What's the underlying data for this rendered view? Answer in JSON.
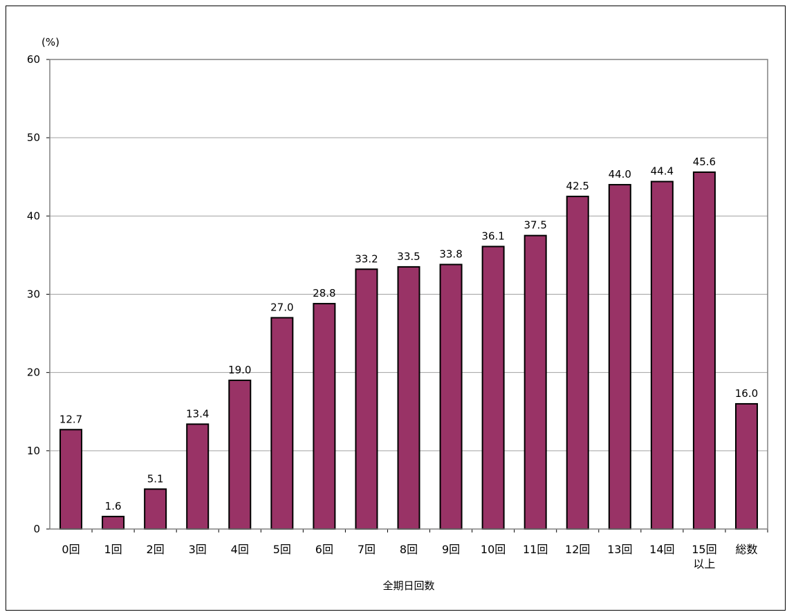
{
  "chart_data": {
    "type": "bar",
    "ylabel": "(%)",
    "xlabel": "全期日回数",
    "ylim": [
      0,
      60
    ],
    "yticks": [
      0,
      10,
      20,
      30,
      40,
      50,
      60
    ],
    "grid": true,
    "legend": "none",
    "categories": [
      [
        "0回"
      ],
      [
        "1回"
      ],
      [
        "2回"
      ],
      [
        "3回"
      ],
      [
        "4回"
      ],
      [
        "5回"
      ],
      [
        "6回"
      ],
      [
        "7回"
      ],
      [
        "8回"
      ],
      [
        "9回"
      ],
      [
        "10回"
      ],
      [
        "11回"
      ],
      [
        "12回"
      ],
      [
        "13回"
      ],
      [
        "14回"
      ],
      [
        "15回",
        "以上"
      ],
      [
        "総数"
      ]
    ],
    "values": [
      12.7,
      1.6,
      5.1,
      13.4,
      19.0,
      27.0,
      28.8,
      33.2,
      33.5,
      33.8,
      36.1,
      37.5,
      42.5,
      44.0,
      44.4,
      45.6,
      16.0
    ],
    "value_labels": [
      "12.7",
      "1.6",
      "5.1",
      "13.4",
      "19.0",
      "27.0",
      "28.8",
      "33.2",
      "33.5",
      "33.8",
      "36.1",
      "37.5",
      "42.5",
      "44.0",
      "44.4",
      "45.6",
      "16.0"
    ],
    "colors": {
      "bar_fill": "#993366",
      "bar_stroke": "#000000",
      "grid": "#a0a0a0",
      "axis": "#808080"
    }
  }
}
